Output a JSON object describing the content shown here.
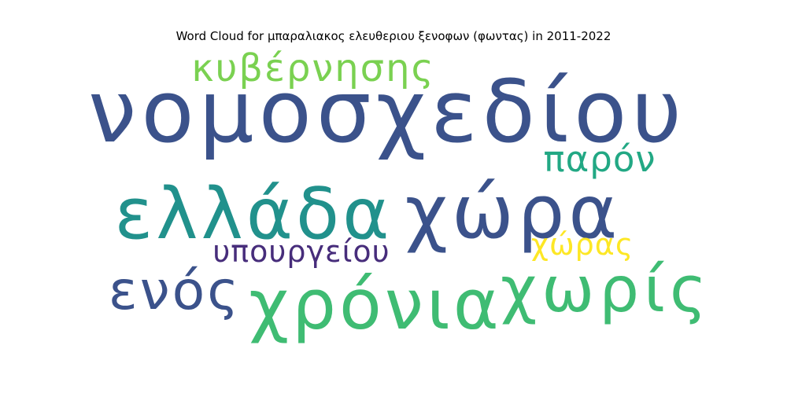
{
  "chart_data": {
    "type": "wordcloud",
    "title": "Word Cloud for μπαραλιακος ελευθεριου ξενοφων (φωντας) in 2011-2022",
    "words": [
      {
        "text": "νομοσχεδίου",
        "weight": 1.0,
        "color": "#3b528b"
      },
      {
        "text": "χώρα",
        "weight": 0.86,
        "color": "#3b528b"
      },
      {
        "text": "ελλάδα",
        "weight": 0.82,
        "color": "#21918c"
      },
      {
        "text": "χρόνια",
        "weight": 0.8,
        "color": "#3fbc73"
      },
      {
        "text": "χωρίς",
        "weight": 0.72,
        "color": "#3fbc73"
      },
      {
        "text": "ενός",
        "weight": 0.62,
        "color": "#3b528b"
      },
      {
        "text": "κυβέρνησης",
        "weight": 0.48,
        "color": "#7ad151"
      },
      {
        "text": "παρόν",
        "weight": 0.45,
        "color": "#22a884"
      },
      {
        "text": "υπουργείου",
        "weight": 0.4,
        "color": "#472d7b"
      },
      {
        "text": "χώρας",
        "weight": 0.35,
        "color": "#fde725"
      }
    ]
  }
}
